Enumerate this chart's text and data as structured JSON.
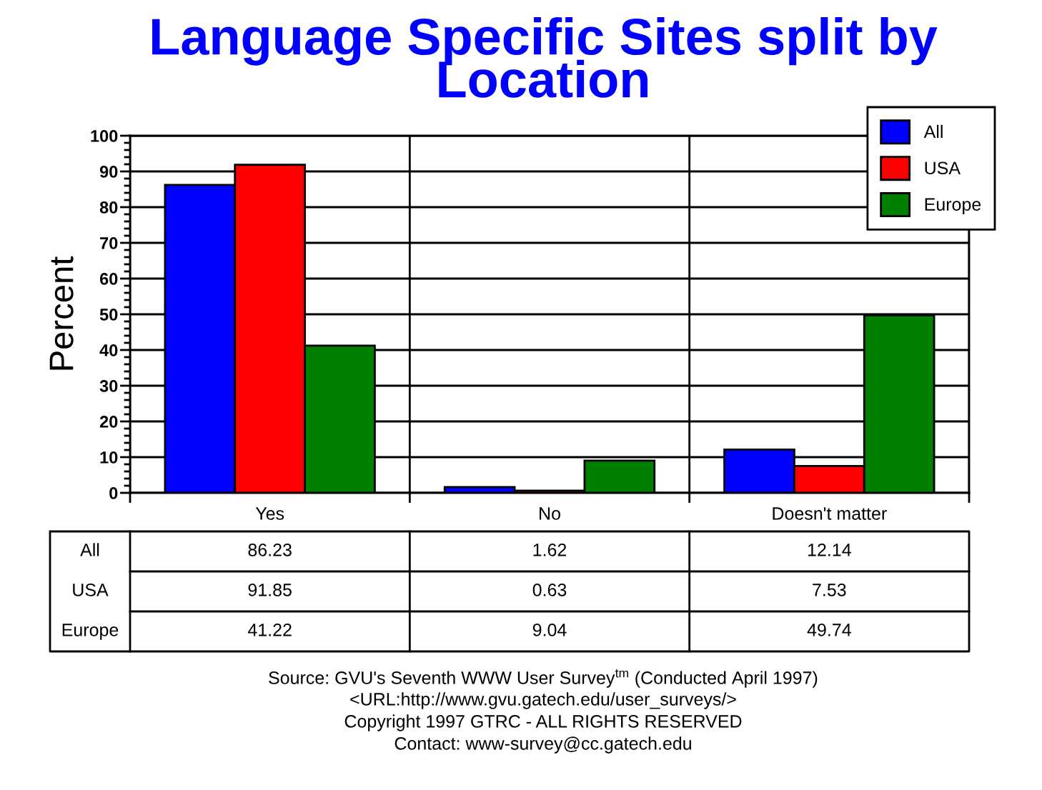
{
  "chart_data": {
    "type": "bar",
    "title": "Language Specific Sites split by\nLocation",
    "ylabel": "Percent",
    "categories": [
      "Yes",
      "No",
      "Doesn't matter"
    ],
    "series": [
      {
        "name": "All",
        "color": "#0000ff",
        "values": [
          86.23,
          1.62,
          12.14
        ]
      },
      {
        "name": "USA",
        "color": "#ff0000",
        "values": [
          91.85,
          0.63,
          7.53
        ]
      },
      {
        "name": "Europe",
        "color": "#008000",
        "values": [
          41.22,
          9.04,
          49.74
        ]
      }
    ],
    "ylim": [
      0,
      100
    ],
    "yticks": [
      0,
      10,
      20,
      30,
      40,
      50,
      60,
      70,
      80,
      90,
      100
    ],
    "grid": true,
    "legend": "top right",
    "data_labels": true,
    "annotations": [
      "Source: GVU's Seventh WWW User Survey$^{tm}$ (Conducted April 1997)",
      "<URL:http://www.gvu.gatech.edu/user_surveys/>",
      "Copyright 1997 GTRC - ALL RIGHTS RESERVED",
      "Contact: www-survey@cc.gatech.edu"
    ]
  }
}
